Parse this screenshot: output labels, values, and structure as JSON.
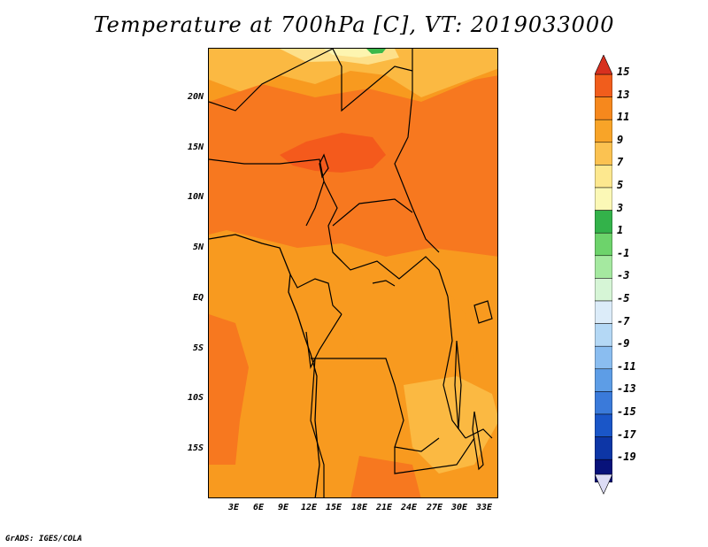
{
  "title": "Temperature at 700hPa [C], VT: 2019033000",
  "credit": "GrADS: IGES/COLA",
  "lat_labels": [
    "20N",
    "15N",
    "10N",
    "5N",
    "EQ",
    "5S",
    "10S",
    "15S"
  ],
  "lon_labels": [
    "3E",
    "6E",
    "9E",
    "12E",
    "15E",
    "18E",
    "21E",
    "24E",
    "27E",
    "30E",
    "33E"
  ],
  "colorbar": {
    "labels": [
      "15",
      "13",
      "11",
      "9",
      "7",
      "5",
      "3",
      "1",
      "-1",
      "-3",
      "-5",
      "-7",
      "-9",
      "-11",
      "-13",
      "-15",
      "-17",
      "-19"
    ],
    "colors": [
      "#e33a1c",
      "#f15d1c",
      "#f6881d",
      "#f8a428",
      "#fbc251",
      "#fde88f",
      "#fbf8b6",
      "#33b24a",
      "#6dd36b",
      "#a5e9a0",
      "#d6f5d6",
      "#dcecf9",
      "#b4d8f5",
      "#8abdf0",
      "#5d9de6",
      "#3a7ada",
      "#1a56c8",
      "#0d36a6",
      "#08127a"
    ],
    "top_arrow_color": "#d7301f",
    "bottom_arrow_color": "#dcdcf5"
  },
  "field_colors": {
    "c13_15": "#f45a1c",
    "c11_13": "#f7781f",
    "c9_11": "#f89a1f",
    "c7_9": "#fbb942",
    "c5_7": "#fde08a",
    "c3_5": "#fdf5b0",
    "green": "#3bb84a"
  }
}
